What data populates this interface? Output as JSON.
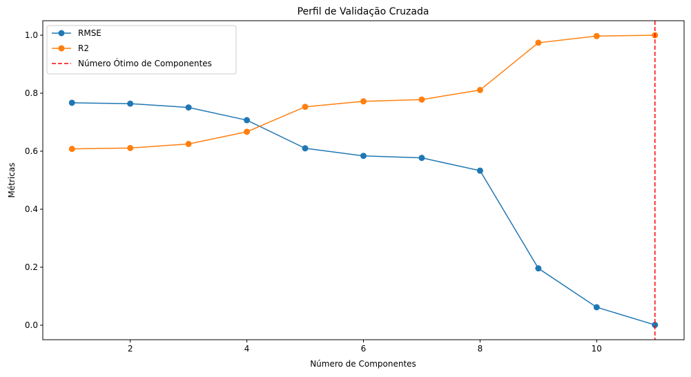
{
  "chart_data": {
    "type": "line",
    "title": "Perfil de Validação Cruzada",
    "xlabel": "Número de Componentes",
    "ylabel": "Métricas",
    "xlim": [
      0.5,
      11.5
    ],
    "ylim": [
      -0.05,
      1.05
    ],
    "xticks": [
      2,
      4,
      6,
      8,
      10
    ],
    "yticks": [
      0.0,
      0.2,
      0.4,
      0.6,
      0.8,
      1.0
    ],
    "ytick_labels": [
      "0.0",
      "0.2",
      "0.4",
      "0.6",
      "0.8",
      "1.0"
    ],
    "grid": false,
    "legend_position": "top-left",
    "x": [
      1,
      2,
      3,
      4,
      5,
      6,
      7,
      8,
      9,
      10,
      11
    ],
    "series": [
      {
        "name": "RMSE",
        "color": "#1f77b4",
        "marker": "circle",
        "values": [
          0.767,
          0.764,
          0.751,
          0.707,
          0.61,
          0.584,
          0.577,
          0.533,
          0.196,
          0.062,
          0.001
        ]
      },
      {
        "name": "R2",
        "color": "#ff7f0e",
        "marker": "circle",
        "values": [
          0.608,
          0.611,
          0.625,
          0.667,
          0.753,
          0.772,
          0.778,
          0.811,
          0.974,
          0.997,
          1.0
        ]
      }
    ],
    "reference_lines": [
      {
        "name": "Número Ótimo de Componentes",
        "orientation": "vertical",
        "x": 11,
        "color": "#ff0000",
        "style": "dashed"
      }
    ]
  }
}
